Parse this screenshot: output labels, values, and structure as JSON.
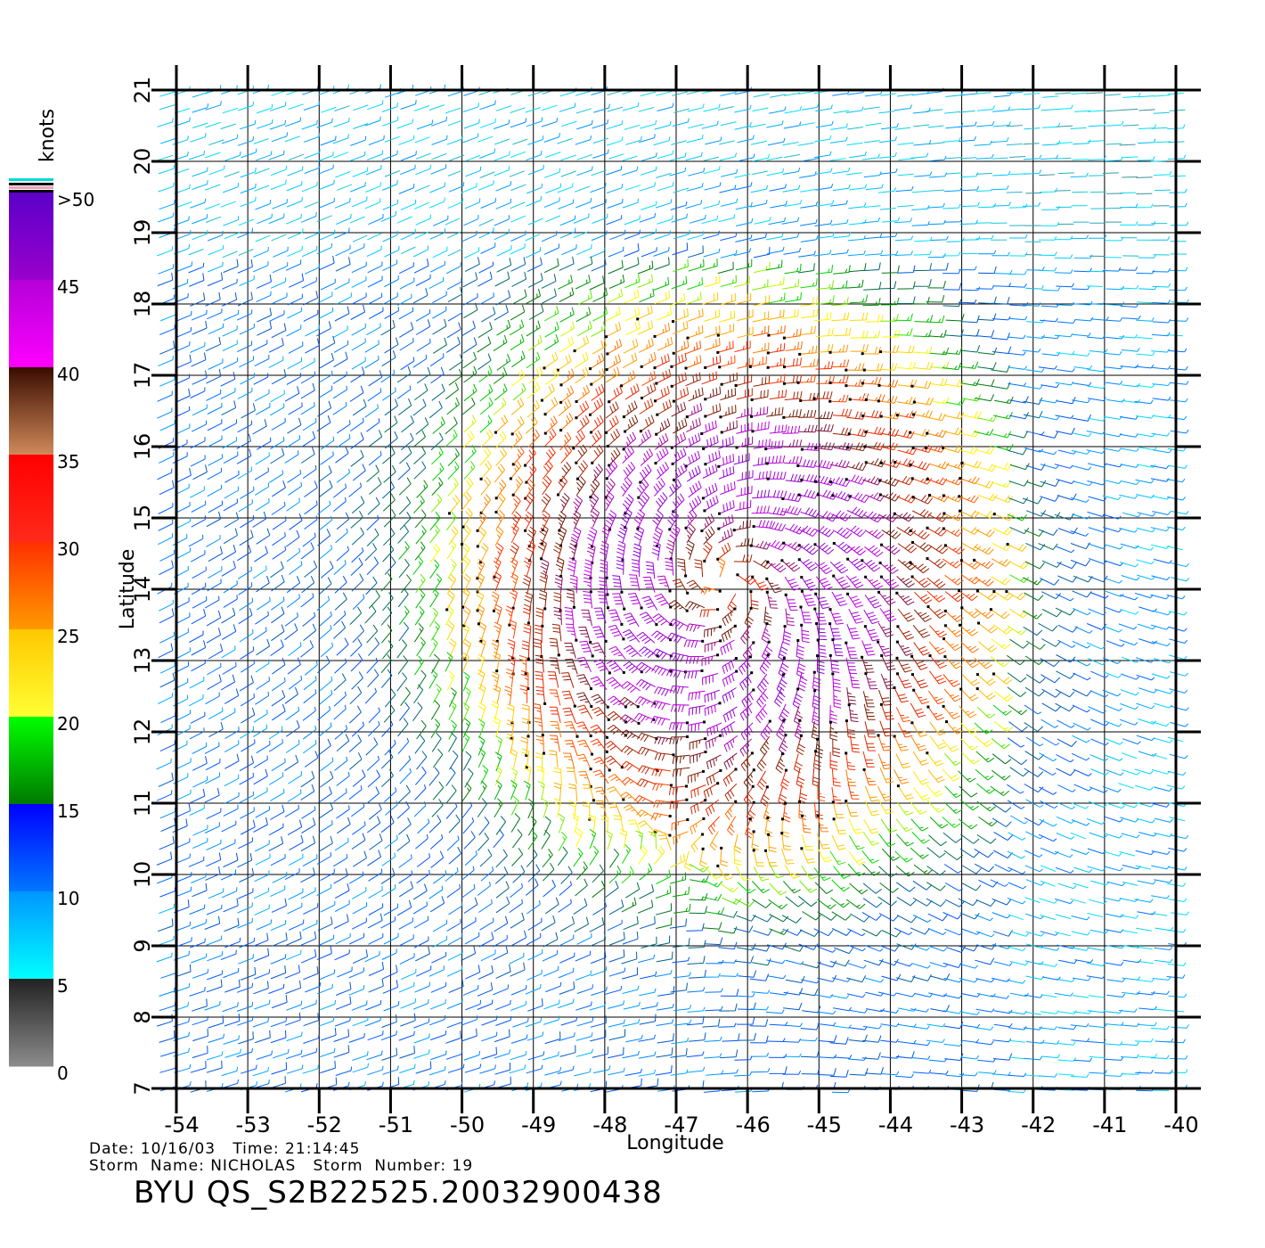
{
  "map": {
    "xlabel": "Longitude",
    "ylabel": "Latitude",
    "lon_range": [
      -54,
      -40
    ],
    "lat_range": [
      7,
      21
    ],
    "lon_ticks": [
      "-54",
      "-53",
      "-52",
      "-51",
      "-50",
      "-49",
      "-48",
      "-47",
      "-46",
      "-45",
      "-44",
      "-43",
      "-42",
      "-41",
      "-40"
    ],
    "lat_ticks": [
      "7",
      "8",
      "9",
      "10",
      "11",
      "12",
      "13",
      "14",
      "15",
      "16",
      "17",
      "18",
      "19",
      "20",
      "21"
    ],
    "grid": true,
    "field": "wind barbs",
    "storm_center": {
      "lon": -46.3,
      "lat": 14.1
    }
  },
  "legend": {
    "unit": "knots",
    "labels": [
      ">50",
      "45",
      "40",
      "35",
      "30",
      "25",
      "20",
      "15",
      "10",
      "5",
      "0"
    ],
    "bands": [
      {
        "range": [
          45,
          50
        ],
        "colors": [
          "#5b00c8",
          "#9a00cc"
        ]
      },
      {
        "range": [
          40,
          45
        ],
        "colors": [
          "#b400d8",
          "#ff00ff"
        ]
      },
      {
        "range": [
          35,
          40
        ],
        "colors": [
          "#3a0c00",
          "#d08a5a"
        ]
      },
      {
        "range": [
          30,
          35
        ],
        "colors": [
          "#ff0000",
          "#ff2a1a"
        ]
      },
      {
        "range": [
          25,
          30
        ],
        "colors": [
          "#ff3000",
          "#ff9a00"
        ]
      },
      {
        "range": [
          20,
          25
        ],
        "colors": [
          "#ffc800",
          "#ffff33"
        ]
      },
      {
        "range": [
          15,
          20
        ],
        "colors": [
          "#00ff00",
          "#007800"
        ]
      },
      {
        "range": [
          10,
          15
        ],
        "colors": [
          "#0000ff",
          "#0078ff"
        ]
      },
      {
        "range": [
          5,
          10
        ],
        "colors": [
          "#0096ff",
          "#00ffff"
        ]
      },
      {
        "range": [
          0,
          5
        ],
        "colors": [
          "#222222",
          "#8c8c8c"
        ]
      }
    ]
  },
  "info": {
    "line1": "Date: 10/16/03   Time: 21:14:45",
    "line2": "Storm  Name: NICHOLAS   Storm  Number: 19",
    "id": "BYU  QS_S2B22525.20032900438"
  }
}
